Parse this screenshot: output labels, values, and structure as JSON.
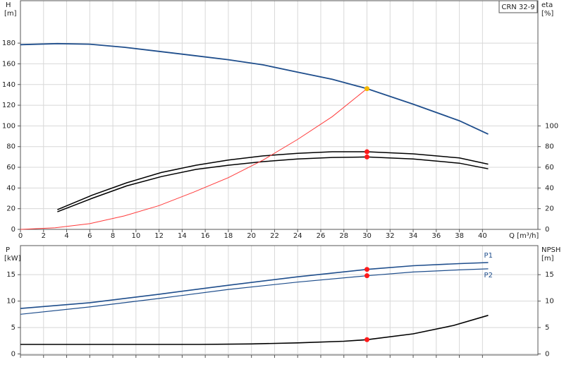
{
  "chart_data": [
    {
      "type": "line",
      "model": "CRN 32-9",
      "y_label": "H",
      "y_unit": "[m]",
      "y2_label": "eta",
      "y2_unit": "[%]",
      "x_label": "Q [m³/h]",
      "xlim": [
        0,
        44.8
      ],
      "xticks": [
        0,
        2,
        4,
        6,
        8,
        10,
        12,
        14,
        16,
        18,
        20,
        22,
        24,
        26,
        28,
        30,
        32,
        34,
        36,
        38,
        40
      ],
      "ylim": [
        0,
        221
      ],
      "yticks": [
        0,
        20,
        40,
        60,
        80,
        100,
        120,
        140,
        160,
        180
      ],
      "y2lim": [
        0,
        221
      ],
      "y2ticks": [
        0,
        20,
        40,
        60,
        80,
        100
      ],
      "grid": true,
      "series": [
        {
          "color": "#1f4e8c",
          "width": 1.8,
          "x": [
            0,
            3.2,
            6,
            9,
            12,
            15,
            18,
            21,
            24,
            27,
            30,
            34,
            38,
            40.5
          ],
          "values": [
            178.5,
            179.5,
            179,
            176,
            172,
            168,
            164,
            159,
            152,
            145,
            136,
            121,
            105,
            92
          ]
        },
        {
          "color": "#000000",
          "width": 1.5,
          "axis": "y2",
          "x": [
            3.2,
            6.2,
            9.2,
            12.2,
            15.2,
            18,
            21,
            24,
            27,
            30,
            34,
            38,
            40.5
          ],
          "values": [
            19,
            33,
            45,
            55,
            62,
            67,
            71,
            73.5,
            75,
            75,
            73,
            69,
            63
          ]
        },
        {
          "color": "#000000",
          "width": 1.5,
          "axis": "y2",
          "x": [
            3.2,
            6.2,
            9.2,
            12.2,
            15.2,
            18,
            21,
            24,
            27,
            30,
            34,
            38,
            40.5
          ],
          "values": [
            17,
            30,
            42,
            51,
            58,
            62,
            65.5,
            68,
            69.5,
            70,
            68,
            64,
            58.5
          ]
        },
        {
          "color": "#ff3b3b",
          "width": 1,
          "x": [
            0,
            3,
            6,
            9,
            12,
            15,
            18,
            21,
            24,
            27,
            30
          ],
          "values": [
            0,
            1.5,
            5.5,
            13,
            23,
            36,
            50,
            67,
            87,
            109,
            136
          ]
        }
      ],
      "points": [
        {
          "x": 30,
          "y": 136,
          "color": "#f5b800"
        },
        {
          "x": 30,
          "y": 75,
          "color": "#ff1a1a",
          "axis": "y2"
        },
        {
          "x": 30,
          "y": 70,
          "color": "#ff1a1a",
          "axis": "y2"
        }
      ]
    },
    {
      "type": "line",
      "y_label": "P",
      "y_unit": "[kW]",
      "y2_label": "NPSH",
      "y2_unit": "[m]",
      "xlim": [
        0,
        44.8
      ],
      "xticks": [
        0,
        2,
        4,
        6,
        8,
        10,
        12,
        14,
        16,
        18,
        20,
        22,
        24,
        26,
        28,
        30,
        32,
        34,
        36,
        38,
        40
      ],
      "ylim": [
        -0.2,
        20.5
      ],
      "yticks": [
        0,
        5,
        10,
        15
      ],
      "y2lim": [
        -0.2,
        20.5
      ],
      "y2ticks": [
        0,
        5,
        10,
        15
      ],
      "grid": true,
      "series": [
        {
          "name": "P1",
          "color": "#1f4e8c",
          "width": 1.6,
          "x": [
            0,
            6,
            12,
            18,
            24,
            30,
            34,
            38,
            40.5
          ],
          "values": [
            8.6,
            9.7,
            11.3,
            13.0,
            14.6,
            16.0,
            16.7,
            17.1,
            17.3
          ]
        },
        {
          "name": "P2",
          "color": "#1f4e8c",
          "width": 1.2,
          "x": [
            0,
            6,
            12,
            18,
            24,
            30,
            34,
            38,
            40.5
          ],
          "values": [
            7.5,
            8.9,
            10.5,
            12.2,
            13.6,
            14.8,
            15.5,
            15.9,
            16.1
          ]
        },
        {
          "color": "#000000",
          "width": 1.6,
          "axis": "y2",
          "x": [
            0,
            9.5,
            15.5,
            20,
            24,
            28,
            30,
            34,
            37.5,
            40.5
          ],
          "values": [
            1.8,
            1.8,
            1.8,
            1.9,
            2.1,
            2.4,
            2.7,
            3.8,
            5.4,
            7.3
          ]
        }
      ],
      "points": [
        {
          "x": 30,
          "y": 16.0,
          "color": "#ff1a1a"
        },
        {
          "x": 30,
          "y": 14.8,
          "color": "#ff1a1a"
        },
        {
          "x": 30,
          "y": 2.7,
          "color": "#ff1a1a",
          "axis": "y2"
        }
      ]
    }
  ]
}
